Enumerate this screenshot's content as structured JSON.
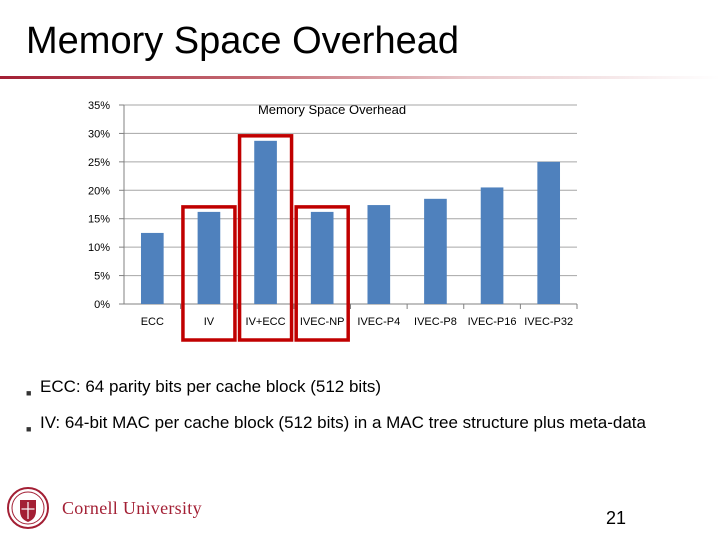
{
  "slide": {
    "title": "Memory Space Overhead",
    "page_number": "21"
  },
  "bullets": [
    {
      "text": "ECC: 64 parity bits per cache block (512 bits)"
    },
    {
      "text": "IV: 64-bit MAC per cache block (512 bits) in a MAC tree structure plus meta-data"
    }
  ],
  "logo": {
    "text": "Cornell University"
  },
  "colors": {
    "bar": "#4f81bd",
    "highlight": "#c00000",
    "accent": "#a31f34",
    "grid": "#a6a6a6"
  },
  "chart_data": {
    "type": "bar",
    "title": "Memory Space Overhead",
    "categories": [
      "ECC",
      "IV",
      "IV+ECC",
      "IVEC-NP",
      "IVEC-P4",
      "IVEC-P8",
      "IVEC-P16",
      "IVEC-P32"
    ],
    "display_tick_labels": [
      "ECC",
      "IV",
      "IV+ECC",
      "IVEC-NP",
      "IVEC-P4",
      "IVEC-P8",
      "IVEC-P16",
      "IVEC-P32"
    ],
    "values": [
      0.125,
      0.162,
      0.287,
      0.162,
      0.174,
      0.185,
      0.205,
      0.25
    ],
    "ylim": [
      0,
      0.35
    ],
    "yticks": [
      "0%",
      "5%",
      "10%",
      "15%",
      "20%",
      "25%",
      "30%",
      "35%"
    ],
    "grid": true,
    "highlighted_categories": [
      "IV",
      "IV+ECC",
      "IVEC-NP"
    ]
  }
}
